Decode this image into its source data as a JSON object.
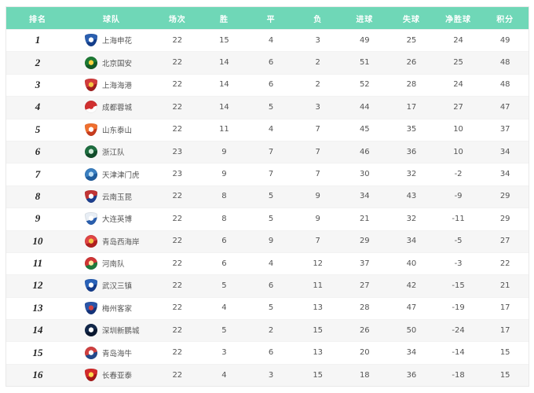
{
  "page": {
    "background": "#ffffff"
  },
  "table": {
    "header_bg": "#6fd7b7",
    "header_text_color": "#ffffff",
    "row_alt_bg": "#f6f6f6",
    "columns": [
      {
        "key": "rank",
        "label": "排名"
      },
      {
        "key": "team",
        "label": "球队"
      },
      {
        "key": "played",
        "label": "场次"
      },
      {
        "key": "win",
        "label": "胜"
      },
      {
        "key": "draw",
        "label": "平"
      },
      {
        "key": "loss",
        "label": "负"
      },
      {
        "key": "goals_for",
        "label": "进球"
      },
      {
        "key": "goals_against",
        "label": "失球"
      },
      {
        "key": "goal_diff",
        "label": "净胜球"
      },
      {
        "key": "points",
        "label": "积分"
      }
    ],
    "rows": [
      {
        "rank": "1",
        "team": "上海申花",
        "logo": {
          "shape": "shield",
          "c1": "#2b5fb0",
          "c2": "#143f8c",
          "c3": "#ffffff"
        },
        "played": "22",
        "win": "15",
        "draw": "4",
        "loss": "3",
        "goals_for": "49",
        "goals_against": "25",
        "goal_diff": "24",
        "points": "49"
      },
      {
        "rank": "2",
        "team": "北京国安",
        "logo": {
          "shape": "circle",
          "c1": "#1d7a34",
          "c2": "#145c26",
          "c3": "#ffd23f"
        },
        "played": "22",
        "win": "14",
        "draw": "6",
        "loss": "2",
        "goals_for": "51",
        "goals_against": "26",
        "goal_diff": "25",
        "points": "48"
      },
      {
        "rank": "3",
        "team": "上海海港",
        "logo": {
          "shape": "shield",
          "c1": "#d23c3c",
          "c2": "#a31f1f",
          "c3": "#f5c542"
        },
        "played": "22",
        "win": "14",
        "draw": "6",
        "loss": "2",
        "goals_for": "52",
        "goals_against": "28",
        "goal_diff": "24",
        "points": "48"
      },
      {
        "rank": "4",
        "team": "成都蓉城",
        "logo": {
          "shape": "circle",
          "c1": "#d03030",
          "c2": "#ffffff",
          "c3": "#d03030"
        },
        "played": "22",
        "win": "14",
        "draw": "5",
        "loss": "3",
        "goals_for": "44",
        "goals_against": "17",
        "goal_diff": "27",
        "points": "47"
      },
      {
        "rank": "5",
        "team": "山东泰山",
        "logo": {
          "shape": "shield",
          "c1": "#f07030",
          "c2": "#c83c1e",
          "c3": "#ffffff"
        },
        "played": "22",
        "win": "11",
        "draw": "4",
        "loss": "7",
        "goals_for": "45",
        "goals_against": "35",
        "goal_diff": "10",
        "points": "37"
      },
      {
        "rank": "6",
        "team": "浙江队",
        "logo": {
          "shape": "circle",
          "c1": "#1e6e40",
          "c2": "#124d2b",
          "c3": "#cfe8d8"
        },
        "played": "23",
        "win": "9",
        "draw": "7",
        "loss": "7",
        "goals_for": "46",
        "goals_against": "36",
        "goal_diff": "10",
        "points": "34"
      },
      {
        "rank": "7",
        "team": "天津津门虎",
        "logo": {
          "shape": "circle",
          "c1": "#3a7fc1",
          "c2": "#1f5d9e",
          "c3": "#bfe0f5"
        },
        "played": "23",
        "win": "9",
        "draw": "7",
        "loss": "7",
        "goals_for": "30",
        "goals_against": "32",
        "goal_diff": "-2",
        "points": "34"
      },
      {
        "rank": "8",
        "team": "云南玉昆",
        "logo": {
          "shape": "shield",
          "c1": "#c23535",
          "c2": "#1d3f8f",
          "c3": "#ffffff"
        },
        "played": "22",
        "win": "8",
        "draw": "5",
        "loss": "9",
        "goals_for": "34",
        "goals_against": "43",
        "goal_diff": "-9",
        "points": "29"
      },
      {
        "rank": "9",
        "team": "大连英博",
        "logo": {
          "shape": "shield",
          "c1": "#e8eef5",
          "c2": "#2a5fae",
          "c3": "#ffffff"
        },
        "played": "22",
        "win": "8",
        "draw": "5",
        "loss": "9",
        "goals_for": "21",
        "goals_against": "32",
        "goal_diff": "-11",
        "points": "29"
      },
      {
        "rank": "10",
        "team": "青岛西海岸",
        "logo": {
          "shape": "circle",
          "c1": "#e04545",
          "c2": "#b02020",
          "c3": "#f2c744"
        },
        "played": "22",
        "win": "6",
        "draw": "9",
        "loss": "7",
        "goals_for": "29",
        "goals_against": "34",
        "goal_diff": "-5",
        "points": "27"
      },
      {
        "rank": "11",
        "team": "河南队",
        "logo": {
          "shape": "circle",
          "c1": "#d03535",
          "c2": "#1e7a3c",
          "c3": "#ffe9a0"
        },
        "played": "22",
        "win": "6",
        "draw": "4",
        "loss": "12",
        "goals_for": "37",
        "goals_against": "40",
        "goal_diff": "-3",
        "points": "22"
      },
      {
        "rank": "12",
        "team": "武汉三镇",
        "logo": {
          "shape": "shield",
          "c1": "#2a62b8",
          "c2": "#143c8c",
          "c3": "#ffffff"
        },
        "played": "22",
        "win": "5",
        "draw": "6",
        "loss": "11",
        "goals_for": "27",
        "goals_against": "42",
        "goal_diff": "-15",
        "points": "21"
      },
      {
        "rank": "13",
        "team": "梅州客家",
        "logo": {
          "shape": "shield",
          "c1": "#2a55a8",
          "c2": "#14337a",
          "c3": "#d04040"
        },
        "played": "22",
        "win": "4",
        "draw": "5",
        "loss": "13",
        "goals_for": "28",
        "goals_against": "47",
        "goal_diff": "-19",
        "points": "17"
      },
      {
        "rank": "14",
        "team": "深圳新鹏城",
        "logo": {
          "shape": "circle",
          "c1": "#12284a",
          "c2": "#0a1830",
          "c3": "#ffffff"
        },
        "played": "22",
        "win": "5",
        "draw": "2",
        "loss": "15",
        "goals_for": "26",
        "goals_against": "50",
        "goal_diff": "-24",
        "points": "17"
      },
      {
        "rank": "15",
        "team": "青岛海牛",
        "logo": {
          "shape": "circle",
          "c1": "#d04040",
          "c2": "#234a8c",
          "c3": "#ffffff"
        },
        "played": "22",
        "win": "3",
        "draw": "6",
        "loss": "13",
        "goals_for": "20",
        "goals_against": "34",
        "goal_diff": "-14",
        "points": "15"
      },
      {
        "rank": "16",
        "team": "长春亚泰",
        "logo": {
          "shape": "shield",
          "c1": "#d42b2b",
          "c2": "#a81818",
          "c3": "#ffd84d"
        },
        "played": "22",
        "win": "4",
        "draw": "3",
        "loss": "15",
        "goals_for": "18",
        "goals_against": "36",
        "goal_diff": "-18",
        "points": "15"
      }
    ]
  }
}
